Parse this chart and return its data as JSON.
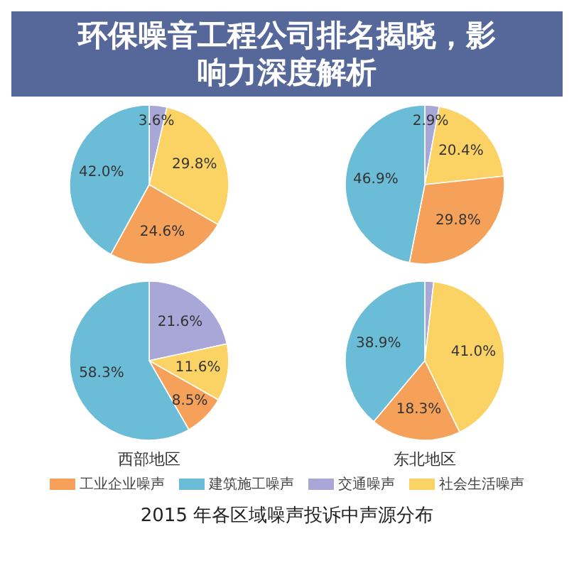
{
  "chart_data": [
    {
      "type": "pie",
      "categories": [
        "交通噪声",
        "社会生活噪声",
        "工业企业噪声",
        "建筑施工噪声"
      ],
      "values": [
        3.6,
        29.8,
        24.6,
        42.0
      ],
      "colors": [
        "#a9a6d8",
        "#fad364",
        "#f5a15a",
        "#6bbcd6"
      ],
      "value_labels": [
        "3.6%",
        "29.8%",
        "24.6%",
        "42.0%"
      ],
      "legend": "bottom"
    },
    {
      "type": "pie",
      "categories": [
        null,
        null,
        null,
        null
      ],
      "values": [
        2.9,
        20.4,
        29.8,
        46.9
      ],
      "colors": [
        "#a9a6d8",
        "#fad364",
        "#f5a15a",
        "#6bbcd6"
      ],
      "value_labels": [
        "2.9%",
        "20.4%",
        "29.8%",
        "46.9%"
      ]
    },
    {
      "type": "pie",
      "title": "西部地区",
      "categories": [
        null,
        null,
        null,
        null
      ],
      "values": [
        21.6,
        11.6,
        8.5,
        58.3
      ],
      "colors": [
        "#a9a6d8",
        "#fad364",
        "#f5a15a",
        "#6bbcd6"
      ],
      "value_labels": [
        "21.6%",
        "11.6%",
        "8.5%",
        "58.3%"
      ]
    },
    {
      "type": "pie",
      "title": "东北地区",
      "categories": [
        null,
        null,
        null,
        null
      ],
      "values": [
        1.8,
        41.0,
        18.3,
        38.9
      ],
      "colors": [
        "#a9a6d8",
        "#fad364",
        "#f5a15a",
        "#6bbcd6"
      ],
      "value_labels": [
        null,
        "41.0%",
        "18.3%",
        "38.9%"
      ]
    },
    {
      "type": "other",
      "title": "环保噪音工程公司排名揭晓，影响力深度解析",
      "annotations": [
        "2015 年各区域噪声投诉中声源分布"
      ]
    }
  ]
}
